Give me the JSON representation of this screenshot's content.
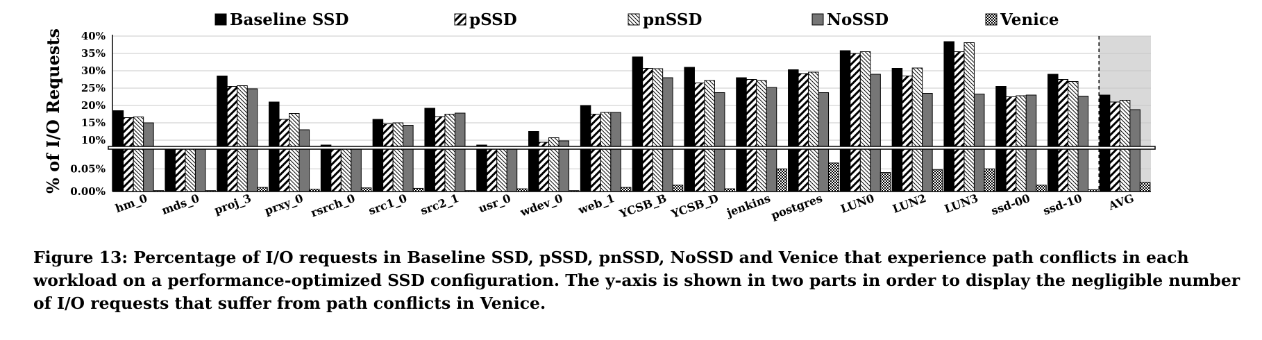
{
  "chart_data": {
    "type": "bar",
    "ylabel": "% of I/O Requests",
    "categories": [
      "hm_0",
      "mds_0",
      "proj_3",
      "prxy_0",
      "rsrch_0",
      "src1_0",
      "src2_1",
      "usr_0",
      "wdev_0",
      "web_1",
      "YCSB_B",
      "YCSB_D",
      "jenkins",
      "postgres",
      "LUN0",
      "LUN2",
      "LUN3",
      "ssd-00",
      "ssd-10",
      "AVG"
    ],
    "series": [
      {
        "name": "Baseline SSD",
        "values": [
          18.5,
          6.8,
          28.5,
          21.0,
          8.6,
          16.0,
          19.2,
          8.6,
          12.5,
          20.0,
          34.0,
          31.0,
          28.0,
          30.3,
          35.8,
          30.7,
          38.4,
          25.5,
          29.0,
          23.0
        ]
      },
      {
        "name": "pSSD",
        "values": [
          16.5,
          6.2,
          25.5,
          16.0,
          7.2,
          14.7,
          16.8,
          7.7,
          9.4,
          17.5,
          30.7,
          26.5,
          27.5,
          29.2,
          35.0,
          28.5,
          35.5,
          22.5,
          27.5,
          21.0
        ]
      },
      {
        "name": "pnSSD",
        "values": [
          16.7,
          6.7,
          25.7,
          17.7,
          7.7,
          15.0,
          17.5,
          8.0,
          10.7,
          18.0,
          30.6,
          27.2,
          27.2,
          29.6,
          35.5,
          30.8,
          38.1,
          22.8,
          26.9,
          21.5
        ]
      },
      {
        "name": "NoSSD",
        "values": [
          15.0,
          5.8,
          24.8,
          13.0,
          7.8,
          14.3,
          17.8,
          8.0,
          9.8,
          18.0,
          28.0,
          23.7,
          25.2,
          23.7,
          29.0,
          23.5,
          23.3,
          23.0,
          22.7,
          18.8
        ]
      },
      {
        "name": "Venice",
        "values": [
          0.002,
          0.002,
          0.009,
          0.005,
          0.008,
          0.007,
          0.002,
          0.006,
          0.002,
          0.009,
          0.014,
          0.006,
          0.05,
          0.063,
          0.042,
          0.048,
          0.05,
          0.014,
          0.004,
          0.02
        ]
      }
    ],
    "ylim_upper": [
      8,
      40
    ],
    "yticks_upper": [
      "10%",
      "15%",
      "20%",
      "25%",
      "30%",
      "35%",
      "40%"
    ],
    "ylim_lower": [
      0,
      0.095
    ],
    "yticks_lower": [
      "0.00%",
      "0.05%"
    ],
    "grid": true,
    "legend": "top",
    "highlight_region": "AVG"
  },
  "caption": "Figure 13: Percentage of I/O requests in Baseline SSD, pSSD, pnSSD, NoSSD and Venice that experience path conflicts in each workload on a performance-optimized SSD configuration. The y-axis is shown in two parts in order to display the negligible number of I/O requests that suffer from path conflicts in Venice.",
  "colors": {
    "baseline": "#000000",
    "nossd": "#767676",
    "avg_band": "#d9d9d9",
    "grid": "#c8c8c8"
  }
}
